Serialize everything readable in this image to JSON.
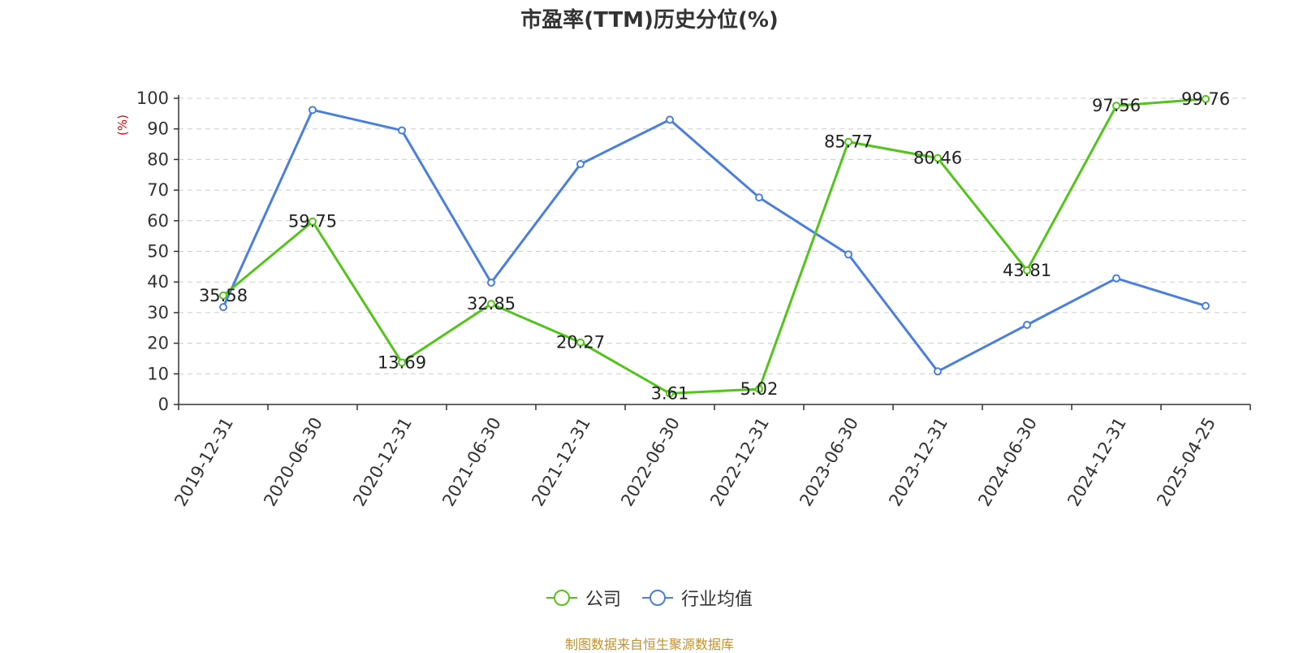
{
  "chart_data": {
    "type": "line",
    "title": "市盈率(TTM)历史分位(%)",
    "ylabel": "(%)",
    "xlabel": "",
    "ylim": [
      0,
      100
    ],
    "yticks": [
      0,
      10,
      20,
      30,
      40,
      50,
      60,
      70,
      80,
      90,
      100
    ],
    "categories": [
      "2019-12-31",
      "2020-06-30",
      "2020-12-31",
      "2021-06-30",
      "2021-12-31",
      "2022-06-30",
      "2022-12-31",
      "2023-06-30",
      "2023-12-31",
      "2024-06-30",
      "2024-12-31",
      "2025-04-25"
    ],
    "grid": true,
    "legend_position": "bottom",
    "series": [
      {
        "name": "公司",
        "color": "#52c41a",
        "values": [
          35.58,
          59.75,
          13.69,
          32.85,
          20.27,
          3.61,
          5.02,
          85.77,
          80.46,
          43.81,
          97.56,
          99.76
        ],
        "show_labels": true
      },
      {
        "name": "行业均值",
        "color": "#4a7fdc",
        "values": [
          31.8,
          96.2,
          89.5,
          39.8,
          78.5,
          93.0,
          67.6,
          49.0,
          10.8,
          26.0,
          41.2,
          32.2
        ],
        "show_labels": false
      }
    ]
  },
  "source": {
    "text": "制图数据来自恒生聚源数据库",
    "color": "#c8902a"
  },
  "colors": {
    "axis": "#333333",
    "grid": "#cccccc",
    "ylabel": "#e8000b"
  }
}
